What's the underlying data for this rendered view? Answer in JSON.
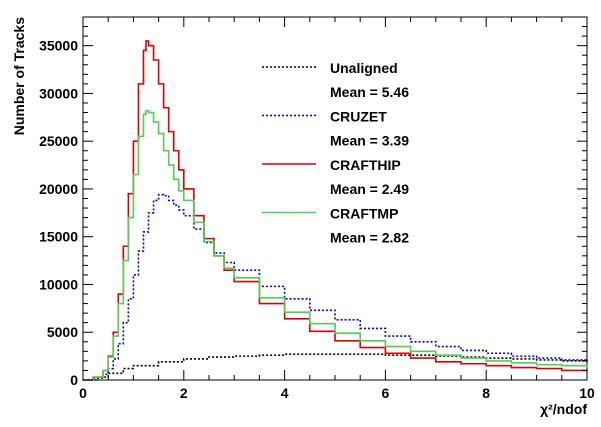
{
  "chart_data": {
    "type": "line",
    "title": "",
    "xlabel": "χ²/ndof",
    "ylabel": "Number of Tracks",
    "xlim": [
      0,
      10
    ],
    "ylim": [
      0,
      38000
    ],
    "xticks": [
      0,
      2,
      4,
      6,
      8,
      10
    ],
    "xtick_labels": [
      "0",
      "2",
      "4",
      "6",
      "8",
      "10"
    ],
    "yticks": [
      0,
      5000,
      10000,
      15000,
      20000,
      25000,
      30000,
      35000
    ],
    "ytick_labels": [
      "0",
      "5000",
      "10000",
      "15000",
      "20000",
      "25000",
      "30000",
      "35000"
    ],
    "grid": false,
    "legend_position": "top-right",
    "series": [
      {
        "name": "Unaligned",
        "mean_label": "Mean = 5.46",
        "color": "#000000",
        "style": "dotted",
        "x": [
          0.0,
          0.3,
          0.5,
          0.8,
          1.0,
          1.5,
          2.0,
          2.5,
          3.0,
          3.5,
          4.0,
          4.5,
          5.0,
          5.5,
          6.0,
          6.5,
          7.0,
          7.5,
          8.0,
          8.5,
          9.0,
          9.5,
          10.0
        ],
        "y": [
          0,
          300,
          700,
          1200,
          1500,
          1900,
          2200,
          2400,
          2500,
          2600,
          2700,
          2700,
          2700,
          2700,
          2600,
          2600,
          2500,
          2400,
          2300,
          2200,
          2100,
          2000,
          1900
        ]
      },
      {
        "name": "CRUZET",
        "mean_label": "Mean = 3.39",
        "color": "#0000cc",
        "style": "dotted",
        "x": [
          0.0,
          0.2,
          0.4,
          0.5,
          0.6,
          0.7,
          0.8,
          0.9,
          1.0,
          1.1,
          1.2,
          1.3,
          1.4,
          1.5,
          1.6,
          1.7,
          1.8,
          1.9,
          2.0,
          2.2,
          2.4,
          2.6,
          2.8,
          3.0,
          3.5,
          4.0,
          4.5,
          5.0,
          5.5,
          6.0,
          6.5,
          7.0,
          7.5,
          8.0,
          8.5,
          9.0,
          9.5,
          10.0
        ],
        "y": [
          0,
          200,
          600,
          1200,
          2200,
          3800,
          6000,
          8500,
          11000,
          13500,
          15500,
          17500,
          18800,
          19400,
          19300,
          18800,
          18300,
          17800,
          17200,
          15800,
          14400,
          13300,
          12300,
          11500,
          9800,
          8500,
          7300,
          6300,
          5400,
          4600,
          4000,
          3500,
          3100,
          2800,
          2500,
          2300,
          2100,
          1900
        ]
      },
      {
        "name": "CRAFTHIP",
        "mean_label": "Mean = 2.49",
        "color": "#e00000",
        "style": "solid",
        "x": [
          0.0,
          0.2,
          0.4,
          0.5,
          0.6,
          0.7,
          0.8,
          0.9,
          1.0,
          1.1,
          1.2,
          1.25,
          1.3,
          1.4,
          1.5,
          1.6,
          1.7,
          1.8,
          1.9,
          2.0,
          2.2,
          2.4,
          2.6,
          2.8,
          3.0,
          3.5,
          4.0,
          4.5,
          5.0,
          5.5,
          6.0,
          6.5,
          7.0,
          7.5,
          8.0,
          8.5,
          9.0,
          9.5,
          10.0
        ],
        "y": [
          0,
          300,
          1000,
          2500,
          5000,
          9000,
          14000,
          19500,
          25000,
          31000,
          34500,
          35500,
          35000,
          33500,
          31000,
          28500,
          26000,
          24000,
          22000,
          20000,
          17200,
          14800,
          13000,
          11500,
          10300,
          8000,
          6400,
          5100,
          4100,
          3400,
          2800,
          2300,
          1900,
          1700,
          1500,
          1300,
          1200,
          1000,
          900
        ]
      },
      {
        "name": "CRAFTMP",
        "mean_label": "Mean = 2.82",
        "color": "#55cc55",
        "style": "solid",
        "x": [
          0.0,
          0.2,
          0.4,
          0.5,
          0.6,
          0.7,
          0.8,
          0.9,
          1.0,
          1.1,
          1.2,
          1.25,
          1.3,
          1.4,
          1.5,
          1.6,
          1.7,
          1.8,
          1.9,
          2.0,
          2.2,
          2.4,
          2.6,
          2.8,
          3.0,
          3.5,
          4.0,
          4.5,
          5.0,
          5.5,
          6.0,
          6.5,
          7.0,
          7.5,
          8.0,
          8.5,
          9.0,
          9.5,
          10.0
        ],
        "y": [
          0,
          300,
          1000,
          2400,
          4600,
          8000,
          12500,
          17000,
          21500,
          25500,
          27800,
          28200,
          28000,
          27000,
          25800,
          24000,
          22500,
          21000,
          19800,
          18800,
          16500,
          14500,
          13000,
          11700,
          10700,
          8600,
          7100,
          5900,
          4900,
          4100,
          3500,
          3000,
          2600,
          2300,
          2000,
          1800,
          1600,
          1500,
          1300
        ]
      }
    ]
  }
}
